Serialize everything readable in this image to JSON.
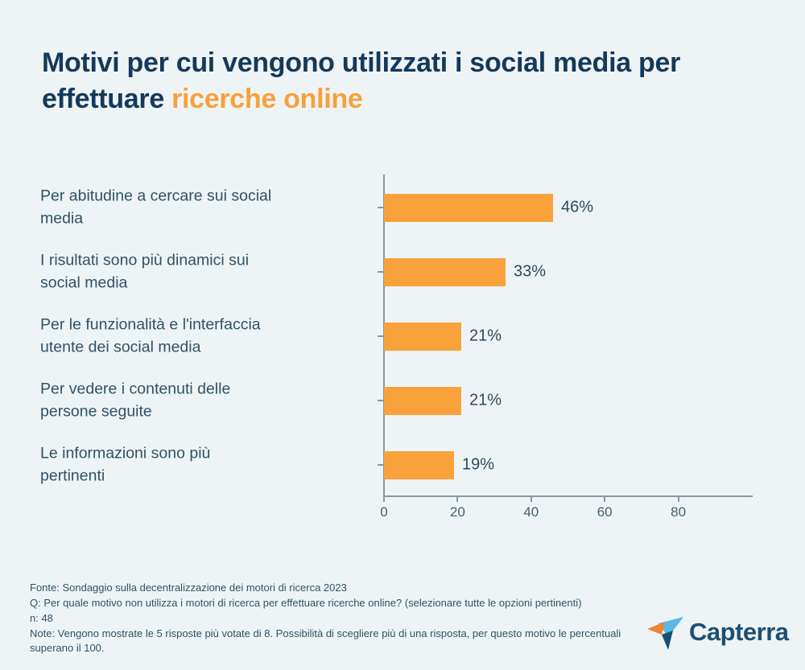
{
  "title": {
    "prefix": "Motivi per cui vengono utilizzati i social media per effettuare ",
    "highlight": "ricerche online"
  },
  "colors": {
    "background": "#EEF4F5",
    "title_dark": "#14395B",
    "accent_orange": "#F8A03C",
    "bar_orange": "#F9A23C",
    "label_blue_gray": "#2F5266",
    "axis_gray": "#8C979E",
    "logo_navy": "#1D4E74",
    "logo_lightblue": "#58B8E5",
    "logo_orange": "#EF8433"
  },
  "chart_data": {
    "type": "bar",
    "orientation": "horizontal",
    "title": "Motivi per cui vengono utilizzati i social media per effettuare ricerche online",
    "categories": [
      "Per abitudine a cercare sui social media",
      "I risultati sono più dinamici sui social media",
      "Per le funzionalità e l'interfaccia utente dei social media",
      "Per vedere i contenuti delle persone seguite",
      "Le informazioni sono più pertinenti"
    ],
    "label_lines": [
      [
        "Per abitudine a cercare sui social",
        "media"
      ],
      [
        "I risultati sono più dinamici sui",
        "social media"
      ],
      [
        "Per le funzionalità e l'interfaccia",
        "utente dei social media"
      ],
      [
        "Per vedere i contenuti delle",
        "persone seguite"
      ],
      [
        "Le informazioni sono più",
        "pertinenti"
      ]
    ],
    "values": [
      46,
      33,
      21,
      21,
      19
    ],
    "value_labels": [
      "46%",
      "33%",
      "21%",
      "21%",
      "19%"
    ],
    "xlabel": "",
    "ylabel": "",
    "xlim": [
      0,
      100
    ],
    "xticks": [
      0,
      20,
      40,
      60,
      80
    ],
    "xtick_labels": [
      "0",
      "20",
      "40",
      "60",
      "80"
    ],
    "grid": false,
    "legend": "none",
    "bar_color": "#F9A23C"
  },
  "footer": {
    "lines": [
      "Fonte: Sondaggio sulla decentralizzazione dei motori di ricerca 2023",
      "Q: Per quale motivo non utilizza i motori di ricerca per effettuare ricerche online? (selezionare tutte le opzioni pertinenti)",
      "n: 48",
      "Note: Vengono mostrate le 5 risposte più votate di 8. Possibilità di scegliere più di una risposta, per questo motivo le percentuali superano il 100."
    ]
  },
  "logo": {
    "brand": "Capterra"
  }
}
